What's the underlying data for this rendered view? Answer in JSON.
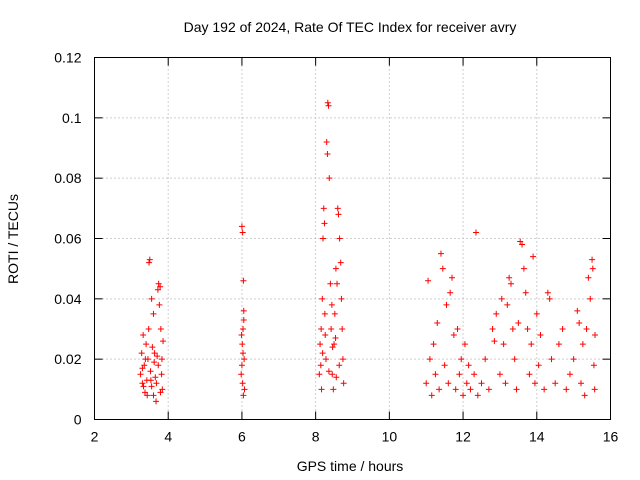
{
  "chart_data": {
    "type": "scatter",
    "title": "Day 192 of 2024, Rate Of TEC Index for receiver avry",
    "xlabel": "GPS time / hours",
    "ylabel": "ROTI / TECUs",
    "xlim": [
      2,
      16
    ],
    "ylim": [
      0,
      0.12
    ],
    "xticks": [
      2,
      4,
      6,
      8,
      10,
      12,
      14,
      16
    ],
    "xtick_labels": [
      "2",
      "4",
      "6",
      "8",
      "10",
      "12",
      "14",
      "16"
    ],
    "yticks": [
      0,
      0.02,
      0.04,
      0.06,
      0.08,
      0.1,
      0.12
    ],
    "ytick_labels": [
      "0",
      "0.02",
      "0.04",
      "0.06",
      "0.08",
      "0.1",
      "0.12"
    ],
    "grid": true,
    "marker": "+",
    "color": "#ff0000",
    "series": [
      {
        "name": "ROTI",
        "points": [
          [
            3.25,
            0.015
          ],
          [
            3.28,
            0.022
          ],
          [
            3.3,
            0.012
          ],
          [
            3.32,
            0.028
          ],
          [
            3.35,
            0.018
          ],
          [
            3.37,
            0.009
          ],
          [
            3.4,
            0.025
          ],
          [
            3.42,
            0.013
          ],
          [
            3.45,
            0.02
          ],
          [
            3.47,
            0.03
          ],
          [
            3.48,
            0.052
          ],
          [
            3.5,
            0.053
          ],
          [
            3.52,
            0.016
          ],
          [
            3.55,
            0.011
          ],
          [
            3.57,
            0.024
          ],
          [
            3.6,
            0.008
          ],
          [
            3.62,
            0.019
          ],
          [
            3.65,
            0.014
          ],
          [
            3.67,
            0.006
          ],
          [
            3.7,
            0.021
          ],
          [
            3.72,
            0.043
          ],
          [
            3.74,
            0.045
          ],
          [
            3.76,
            0.038
          ],
          [
            3.78,
            0.044
          ],
          [
            3.8,
            0.03
          ],
          [
            3.82,
            0.015
          ],
          [
            3.84,
            0.01
          ],
          [
            3.86,
            0.026
          ],
          [
            3.55,
            0.04
          ],
          [
            3.6,
            0.035
          ],
          [
            3.3,
            0.017
          ],
          [
            3.33,
            0.011
          ],
          [
            3.38,
            0.02
          ],
          [
            3.43,
            0.008
          ],
          [
            3.53,
            0.013
          ],
          [
            3.63,
            0.022
          ],
          [
            3.68,
            0.012
          ],
          [
            3.73,
            0.018
          ],
          [
            3.79,
            0.009
          ],
          [
            3.83,
            0.02
          ],
          [
            6.0,
            0.064
          ],
          [
            6.02,
            0.062
          ],
          [
            6.04,
            0.046
          ],
          [
            6.05,
            0.036
          ],
          [
            6.03,
            0.03
          ],
          [
            6.01,
            0.025
          ],
          [
            6.06,
            0.02
          ],
          [
            5.98,
            0.015
          ],
          [
            6.02,
            0.012
          ],
          [
            6.04,
            0.008
          ],
          [
            6.0,
            0.018
          ],
          [
            6.05,
            0.033
          ],
          [
            5.99,
            0.028
          ],
          [
            6.07,
            0.01
          ],
          [
            6.03,
            0.022
          ],
          [
            8.1,
            0.015
          ],
          [
            8.12,
            0.025
          ],
          [
            8.15,
            0.03
          ],
          [
            8.18,
            0.04
          ],
          [
            8.2,
            0.06
          ],
          [
            8.22,
            0.07
          ],
          [
            8.24,
            0.065
          ],
          [
            8.25,
            0.035
          ],
          [
            8.28,
            0.02
          ],
          [
            8.3,
            0.092
          ],
          [
            8.32,
            0.088
          ],
          [
            8.33,
            0.105
          ],
          [
            8.35,
            0.104
          ],
          [
            8.37,
            0.08
          ],
          [
            8.4,
            0.045
          ],
          [
            8.42,
            0.03
          ],
          [
            8.45,
            0.015
          ],
          [
            8.48,
            0.01
          ],
          [
            8.5,
            0.025
          ],
          [
            8.52,
            0.035
          ],
          [
            8.55,
            0.05
          ],
          [
            8.58,
            0.045
          ],
          [
            8.6,
            0.07
          ],
          [
            8.62,
            0.068
          ],
          [
            8.65,
            0.06
          ],
          [
            8.68,
            0.052
          ],
          [
            8.7,
            0.04
          ],
          [
            8.72,
            0.03
          ],
          [
            8.74,
            0.02
          ],
          [
            8.76,
            0.012
          ],
          [
            8.14,
            0.018
          ],
          [
            8.19,
            0.022
          ],
          [
            8.26,
            0.028
          ],
          [
            8.36,
            0.016
          ],
          [
            8.44,
            0.038
          ],
          [
            8.54,
            0.027
          ],
          [
            8.64,
            0.018
          ],
          [
            8.16,
            0.01
          ],
          [
            8.46,
            0.024
          ],
          [
            8.56,
            0.014
          ],
          [
            11.0,
            0.012
          ],
          [
            11.05,
            0.046
          ],
          [
            11.1,
            0.02
          ],
          [
            11.15,
            0.008
          ],
          [
            11.2,
            0.025
          ],
          [
            11.25,
            0.015
          ],
          [
            11.3,
            0.032
          ],
          [
            11.35,
            0.01
          ],
          [
            11.4,
            0.055
          ],
          [
            11.45,
            0.05
          ],
          [
            11.5,
            0.018
          ],
          [
            11.55,
            0.038
          ],
          [
            11.6,
            0.012
          ],
          [
            11.65,
            0.042
          ],
          [
            11.7,
            0.047
          ],
          [
            11.75,
            0.028
          ],
          [
            11.8,
            0.01
          ],
          [
            11.85,
            0.03
          ],
          [
            11.9,
            0.015
          ],
          [
            11.95,
            0.02
          ],
          [
            12.0,
            0.008
          ],
          [
            12.05,
            0.025
          ],
          [
            12.1,
            0.012
          ],
          [
            12.15,
            0.018
          ],
          [
            12.2,
            0.01
          ],
          [
            12.3,
            0.015
          ],
          [
            12.35,
            0.062
          ],
          [
            12.4,
            0.008
          ],
          [
            12.5,
            0.012
          ],
          [
            12.6,
            0.02
          ],
          [
            12.7,
            0.01
          ],
          [
            12.8,
            0.03
          ],
          [
            12.85,
            0.026
          ],
          [
            12.9,
            0.035
          ],
          [
            13.0,
            0.015
          ],
          [
            13.05,
            0.04
          ],
          [
            13.1,
            0.025
          ],
          [
            13.15,
            0.012
          ],
          [
            13.2,
            0.038
          ],
          [
            13.25,
            0.047
          ],
          [
            13.3,
            0.045
          ],
          [
            13.35,
            0.03
          ],
          [
            13.4,
            0.02
          ],
          [
            13.45,
            0.01
          ],
          [
            13.5,
            0.032
          ],
          [
            13.55,
            0.059
          ],
          [
            13.6,
            0.058
          ],
          [
            13.65,
            0.05
          ],
          [
            13.7,
            0.042
          ],
          [
            13.75,
            0.03
          ],
          [
            13.8,
            0.015
          ],
          [
            13.85,
            0.025
          ],
          [
            13.9,
            0.054
          ],
          [
            13.95,
            0.012
          ],
          [
            14.0,
            0.035
          ],
          [
            14.05,
            0.018
          ],
          [
            14.1,
            0.028
          ],
          [
            14.2,
            0.01
          ],
          [
            14.3,
            0.042
          ],
          [
            14.35,
            0.04
          ],
          [
            14.4,
            0.02
          ],
          [
            14.5,
            0.012
          ],
          [
            14.6,
            0.025
          ],
          [
            14.7,
            0.03
          ],
          [
            14.8,
            0.01
          ],
          [
            14.9,
            0.015
          ],
          [
            15.0,
            0.02
          ],
          [
            15.1,
            0.036
          ],
          [
            15.15,
            0.032
          ],
          [
            15.2,
            0.012
          ],
          [
            15.25,
            0.025
          ],
          [
            15.3,
            0.008
          ],
          [
            15.35,
            0.03
          ],
          [
            15.4,
            0.047
          ],
          [
            15.45,
            0.04
          ],
          [
            15.5,
            0.053
          ],
          [
            15.52,
            0.05
          ],
          [
            15.55,
            0.018
          ],
          [
            15.57,
            0.01
          ],
          [
            15.58,
            0.028
          ]
        ]
      }
    ]
  }
}
